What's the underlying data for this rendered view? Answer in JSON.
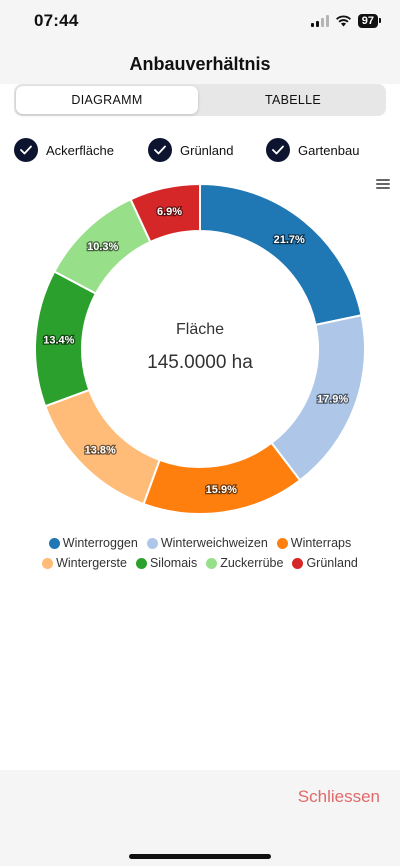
{
  "status_bar": {
    "time": "07:44",
    "battery": "97"
  },
  "header": {
    "title": "Anbauverhältnis"
  },
  "tabs": [
    {
      "label": "DIAGRAMM",
      "active": true
    },
    {
      "label": "TABELLE",
      "active": false
    }
  ],
  "filters": [
    {
      "label": "Ackerfläche",
      "checked": true
    },
    {
      "label": "Grünland",
      "checked": true
    },
    {
      "label": "Gartenbau",
      "checked": true
    }
  ],
  "chart_center": {
    "title": "Fläche",
    "value": "145.0000 ha"
  },
  "chart_data": {
    "type": "pie",
    "donut": true,
    "categories": [
      "Winterroggen",
      "Winterweichweizen",
      "Winterraps",
      "Wintergerste",
      "Silomais",
      "Zuckerrübe",
      "Grünland"
    ],
    "values": [
      21.7,
      17.9,
      15.9,
      13.8,
      13.4,
      10.3,
      6.9
    ],
    "labels": [
      "21.7%",
      "17.9%",
      "15.9%",
      "13.8%",
      "13.4%",
      "10.3%",
      "6.9%"
    ],
    "colors": [
      "#1f77b4",
      "#aec7e8",
      "#ff7f0e",
      "#ffbb78",
      "#2ca02c",
      "#98df8a",
      "#d62728"
    ],
    "legend_position": "bottom"
  },
  "footer": {
    "close_label": "Schliessen"
  }
}
